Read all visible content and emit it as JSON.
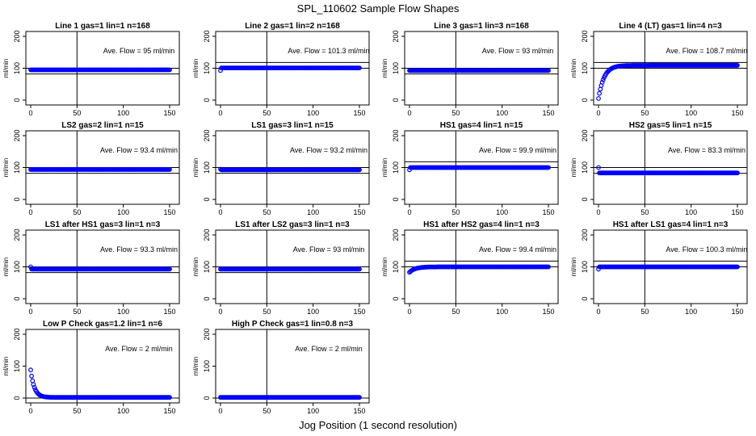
{
  "title": "SPL_110602  Sample Flow Shapes",
  "xlabel": "Jog Position (1 second resolution)",
  "point_color": "#0000ff",
  "chart_data": [
    {
      "type": "scatter",
      "title": "Line 1 gas=1 lin=1 n=168",
      "ylabel": "ml/min",
      "xlim": [
        0,
        150
      ],
      "ylim": [
        0,
        200
      ],
      "xticks": [
        0,
        50,
        100,
        150
      ],
      "yticks": [
        0,
        100,
        200
      ],
      "vline": 50,
      "hlines": [
        100,
        82
      ],
      "annotation": "Ave. Flow = 95  ml/min",
      "series": [
        {
          "shape": "flat",
          "level": 95,
          "start": 95
        }
      ]
    },
    {
      "type": "scatter",
      "title": "Line 2 gas=1 lin=2 n=168",
      "ylabel": "ml/min",
      "xlim": [
        0,
        150
      ],
      "ylim": [
        0,
        200
      ],
      "xticks": [
        0,
        50,
        100,
        150
      ],
      "yticks": [
        0,
        100,
        200
      ],
      "vline": 50,
      "hlines": [
        118,
        100
      ],
      "annotation": "Ave. Flow = 101.3  ml/min",
      "series": [
        {
          "shape": "flat",
          "level": 101,
          "start": 93
        }
      ]
    },
    {
      "type": "scatter",
      "title": "Line 3 gas=1 lin=3 n=168",
      "ylabel": "ml/min",
      "xlim": [
        0,
        150
      ],
      "ylim": [
        0,
        200
      ],
      "xticks": [
        0,
        50,
        100,
        150
      ],
      "yticks": [
        0,
        100,
        200
      ],
      "vline": 50,
      "hlines": [
        100,
        82
      ],
      "annotation": "Ave. Flow = 93  ml/min",
      "series": [
        {
          "shape": "flat",
          "level": 93,
          "start": 93
        }
      ]
    },
    {
      "type": "scatter",
      "title": "Line 4 (LT) gas=1 lin=4 n=3",
      "ylabel": "ml/min",
      "xlim": [
        0,
        150
      ],
      "ylim": [
        0,
        200
      ],
      "xticks": [
        0,
        50,
        100,
        150
      ],
      "yticks": [
        0,
        100,
        200
      ],
      "vline": 50,
      "hlines": [
        118,
        100
      ],
      "annotation": "Ave. Flow = 108.7  ml/min",
      "series": [
        {
          "shape": "rise",
          "level": 109,
          "start": 5
        }
      ]
    },
    {
      "type": "scatter",
      "title": "LS2 gas=2 lin=1 n=15",
      "ylabel": "ml/min",
      "xlim": [
        0,
        150
      ],
      "ylim": [
        0,
        200
      ],
      "xticks": [
        0,
        50,
        100,
        150
      ],
      "yticks": [
        0,
        100,
        200
      ],
      "vline": 50,
      "hlines": [
        100,
        82
      ],
      "annotation": "Ave. Flow = 93.4  ml/min",
      "series": [
        {
          "shape": "flat",
          "level": 94,
          "start": 94
        }
      ]
    },
    {
      "type": "scatter",
      "title": "LS1 gas=3 lin=1 n=15",
      "ylabel": "ml/min",
      "xlim": [
        0,
        150
      ],
      "ylim": [
        0,
        200
      ],
      "xticks": [
        0,
        50,
        100,
        150
      ],
      "yticks": [
        0,
        100,
        200
      ],
      "vline": 50,
      "hlines": [
        100,
        82
      ],
      "annotation": "Ave. Flow = 93.2  ml/min",
      "series": [
        {
          "shape": "flat",
          "level": 93,
          "start": 95
        }
      ]
    },
    {
      "type": "scatter",
      "title": "HS1 gas=4 lin=1 n=15",
      "ylabel": "ml/min",
      "xlim": [
        0,
        150
      ],
      "ylim": [
        0,
        200
      ],
      "xticks": [
        0,
        50,
        100,
        150
      ],
      "yticks": [
        0,
        100,
        200
      ],
      "vline": 50,
      "hlines": [
        118,
        100
      ],
      "annotation": "Ave. Flow = 99.9  ml/min",
      "series": [
        {
          "shape": "flat",
          "level": 100,
          "start": 93
        }
      ]
    },
    {
      "type": "scatter",
      "title": "HS2 gas=5 lin=1 n=15",
      "ylabel": "ml/min",
      "xlim": [
        0,
        150
      ],
      "ylim": [
        0,
        200
      ],
      "xticks": [
        0,
        50,
        100,
        150
      ],
      "yticks": [
        0,
        100,
        200
      ],
      "vline": 50,
      "hlines": [
        100,
        82
      ],
      "annotation": "Ave. Flow = 83.3  ml/min",
      "series": [
        {
          "shape": "flat",
          "level": 83,
          "start": 100
        }
      ]
    },
    {
      "type": "scatter",
      "title": "LS1 after HS1 gas=3 lin=1 n=3",
      "ylabel": "ml/min",
      "xlim": [
        0,
        150
      ],
      "ylim": [
        0,
        200
      ],
      "xticks": [
        0,
        50,
        100,
        150
      ],
      "yticks": [
        0,
        100,
        200
      ],
      "vline": 50,
      "hlines": [
        100,
        82
      ],
      "annotation": "Ave. Flow = 93.3  ml/min",
      "series": [
        {
          "shape": "flat",
          "level": 93,
          "start": 100
        }
      ]
    },
    {
      "type": "scatter",
      "title": "LS1 after LS2 gas=3 lin=1 n=3",
      "ylabel": "ml/min",
      "xlim": [
        0,
        150
      ],
      "ylim": [
        0,
        200
      ],
      "xticks": [
        0,
        50,
        100,
        150
      ],
      "yticks": [
        0,
        100,
        200
      ],
      "vline": 50,
      "hlines": [
        100,
        82
      ],
      "annotation": "Ave. Flow = 93  ml/min",
      "series": [
        {
          "shape": "flat",
          "level": 93,
          "start": 93
        }
      ]
    },
    {
      "type": "scatter",
      "title": "HS1 after HS2 gas=4 lin=1 n=3",
      "ylabel": "ml/min",
      "xlim": [
        0,
        150
      ],
      "ylim": [
        0,
        200
      ],
      "xticks": [
        0,
        50,
        100,
        150
      ],
      "yticks": [
        0,
        100,
        200
      ],
      "vline": 50,
      "hlines": [
        118,
        100
      ],
      "annotation": "Ave. Flow = 99.4  ml/min",
      "series": [
        {
          "shape": "rise",
          "level": 100,
          "start": 83
        }
      ]
    },
    {
      "type": "scatter",
      "title": "HS1 after LS1 gas=4 lin=1 n=3",
      "ylabel": "ml/min",
      "xlim": [
        0,
        150
      ],
      "ylim": [
        0,
        200
      ],
      "xticks": [
        0,
        50,
        100,
        150
      ],
      "yticks": [
        0,
        100,
        200
      ],
      "vline": 50,
      "hlines": [
        118,
        100
      ],
      "annotation": "Ave. Flow = 100.3  ml/min",
      "series": [
        {
          "shape": "flat",
          "level": 100,
          "start": 93
        }
      ]
    },
    {
      "type": "scatter",
      "title": "Low P Check gas=1.2 lin=1 n=6",
      "ylabel": "ml/min",
      "xlim": [
        0,
        150
      ],
      "ylim": [
        0,
        200
      ],
      "xticks": [
        0,
        50,
        100,
        150
      ],
      "yticks": [
        0,
        100,
        200
      ],
      "vline": 50,
      "hlines": [
        0
      ],
      "annotation": "Ave. Flow = 2  ml/min",
      "series": [
        {
          "shape": "decay",
          "level": 2,
          "start": 88
        }
      ]
    },
    {
      "type": "scatter",
      "title": "High P Check gas=1 lin=0.8 n=3",
      "ylabel": "ml/min",
      "xlim": [
        0,
        150
      ],
      "ylim": [
        0,
        200
      ],
      "xticks": [
        0,
        50,
        100,
        150
      ],
      "yticks": [
        0,
        100,
        200
      ],
      "vline": 50,
      "hlines": [
        0
      ],
      "annotation": "Ave. Flow = 2  ml/min",
      "series": [
        {
          "shape": "flat",
          "level": 2,
          "start": 2
        }
      ]
    }
  ]
}
